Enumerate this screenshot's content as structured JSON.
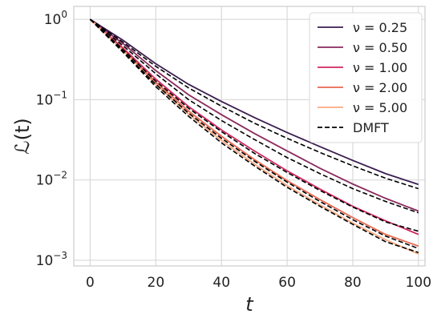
{
  "chart_data": {
    "type": "line",
    "xlabel": "t",
    "ylabel": "ℒ(t)",
    "xscale": "linear",
    "yscale": "log",
    "xlim": [
      -5,
      102
    ],
    "ylim": [
      0.00085,
      1.45
    ],
    "xticks": [
      0,
      20,
      40,
      60,
      80,
      100
    ],
    "xtick_labels": [
      "0",
      "20",
      "40",
      "60",
      "80",
      "100"
    ],
    "yticks": [
      0.001,
      0.01,
      0.1,
      1
    ],
    "ytick_labels": [
      {
        "base": "10",
        "exp": "−3"
      },
      {
        "base": "10",
        "exp": "−2"
      },
      {
        "base": "10",
        "exp": "−1"
      },
      {
        "base": "10",
        "exp": "0"
      }
    ],
    "grid": true,
    "legend_position": "top-right",
    "series": [
      {
        "name": "ν = 0.25",
        "color": "#3b1d4f",
        "style": "solid",
        "x": [
          0,
          10,
          20,
          30,
          40,
          50,
          60,
          70,
          80,
          90,
          100
        ],
        "y": [
          1.0,
          0.55,
          0.28,
          0.155,
          0.095,
          0.06,
          0.039,
          0.026,
          0.0175,
          0.012,
          0.0088
        ]
      },
      {
        "name": "ν = 0.50",
        "color": "#8a2a5d",
        "style": "solid",
        "x": [
          0,
          10,
          20,
          30,
          40,
          50,
          60,
          70,
          80,
          90,
          100
        ],
        "y": [
          1.0,
          0.5,
          0.23,
          0.115,
          0.065,
          0.038,
          0.023,
          0.014,
          0.0089,
          0.0059,
          0.0041
        ]
      },
      {
        "name": "ν = 1.00",
        "color": "#d02760",
        "style": "solid",
        "x": [
          0,
          10,
          20,
          30,
          40,
          50,
          60,
          70,
          80,
          90,
          100
        ],
        "y": [
          1.0,
          0.44,
          0.18,
          0.082,
          0.042,
          0.023,
          0.013,
          0.0077,
          0.0047,
          0.0031,
          0.0021
        ]
      },
      {
        "name": "ν = 2.00",
        "color": "#e8674e",
        "style": "solid",
        "x": [
          0,
          10,
          20,
          30,
          40,
          50,
          60,
          70,
          80,
          90,
          100
        ],
        "y": [
          1.0,
          0.42,
          0.165,
          0.072,
          0.035,
          0.018,
          0.0098,
          0.0057,
          0.0034,
          0.0021,
          0.0015
        ]
      },
      {
        "name": "ν = 5.00",
        "color": "#f9a983",
        "style": "solid",
        "x": [
          0,
          10,
          20,
          30,
          40,
          50,
          60,
          70,
          80,
          90,
          100
        ],
        "y": [
          1.0,
          0.41,
          0.155,
          0.066,
          0.031,
          0.0158,
          0.0085,
          0.0049,
          0.0029,
          0.0018,
          0.0012
        ]
      },
      {
        "name": "DMFT",
        "color": "#000000",
        "style": "dashed",
        "x": [
          0,
          10,
          20,
          30,
          40,
          50,
          60,
          70,
          80,
          90,
          100
        ],
        "y": [
          1.0,
          0.52,
          0.26,
          0.14,
          0.083,
          0.051,
          0.033,
          0.022,
          0.015,
          0.0105,
          0.0078
        ]
      },
      {
        "name": "",
        "color": "#000000",
        "style": "dashed",
        "in_legend": false,
        "x": [
          0,
          10,
          20,
          30,
          40,
          50,
          60,
          70,
          80,
          90,
          100
        ],
        "y": [
          1.0,
          0.47,
          0.21,
          0.1,
          0.055,
          0.032,
          0.019,
          0.012,
          0.0078,
          0.0054,
          0.0039
        ]
      },
      {
        "name": "",
        "color": "#000000",
        "style": "dashed",
        "in_legend": false,
        "x": [
          0,
          10,
          20,
          30,
          40,
          50,
          60,
          70,
          80,
          90,
          100
        ],
        "y": [
          1.0,
          0.42,
          0.17,
          0.078,
          0.04,
          0.0215,
          0.0124,
          0.0074,
          0.0046,
          0.003,
          0.0023
        ]
      },
      {
        "name": "",
        "color": "#000000",
        "style": "dashed",
        "in_legend": false,
        "x": [
          0,
          10,
          20,
          30,
          40,
          50,
          60,
          70,
          80,
          90,
          100
        ],
        "y": [
          1.0,
          0.4,
          0.155,
          0.068,
          0.033,
          0.0172,
          0.0094,
          0.0054,
          0.0032,
          0.002,
          0.0014
        ]
      },
      {
        "name": "",
        "color": "#000000",
        "style": "dashed",
        "in_legend": false,
        "x": [
          0,
          10,
          20,
          30,
          40,
          50,
          60,
          70,
          80,
          90,
          100
        ],
        "y": [
          1.0,
          0.39,
          0.145,
          0.062,
          0.029,
          0.015,
          0.0081,
          0.0047,
          0.0028,
          0.0017,
          0.00125
        ]
      }
    ]
  }
}
